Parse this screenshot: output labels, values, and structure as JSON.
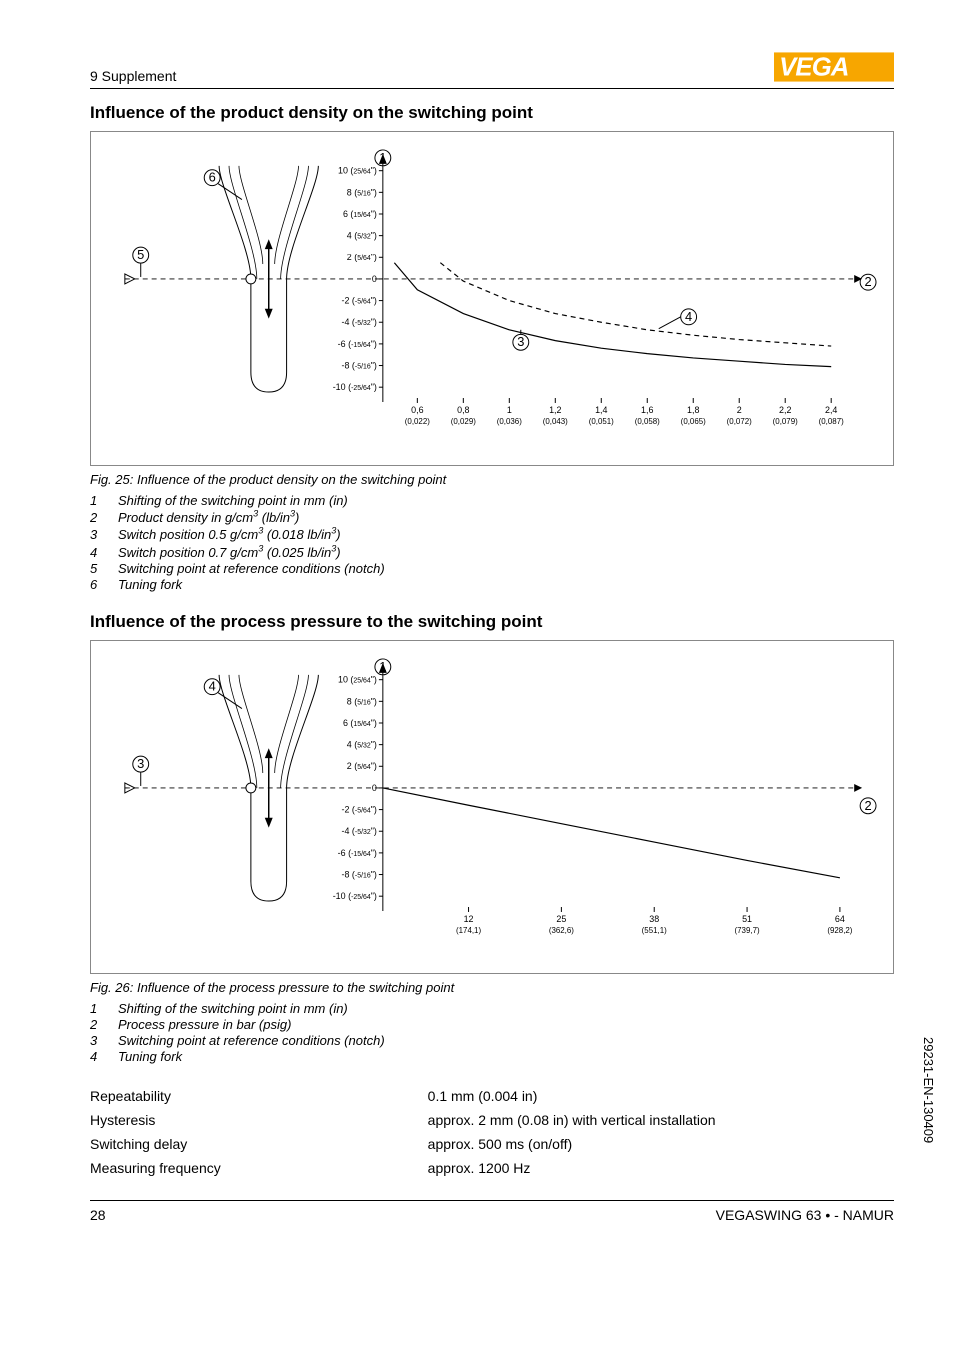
{
  "header": {
    "supplement": "9 Supplement"
  },
  "logo_colors": {
    "bg": "#f7a600",
    "fg": "#ffffff"
  },
  "section1": {
    "heading": "Influence of the product density on the switching point",
    "caption": "Fig. 25: Influence of the product density on the switching point",
    "legend": [
      "Shifting of the switching point in mm (in)",
      "Product density in g/cm³ (lb/in³)",
      "Switch position 0.5 g/cm³ (0.018 lb/in³)",
      "Switch position 0.7 g/cm³ (0.025 lb/in³)",
      "Switching point at reference conditions (notch)",
      "Tuning fork"
    ]
  },
  "section2": {
    "heading": "Influence of the process pressure to the switching point",
    "caption": "Fig. 26: Influence of the process pressure to the switching point",
    "legend": [
      "Shifting of the switching point in mm (in)",
      "Process pressure in bar (psig)",
      "Switching point at reference conditions (notch)",
      "Tuning fork"
    ]
  },
  "chart_common": {
    "y_values": [
      10,
      8,
      6,
      4,
      2,
      0,
      -2,
      -4,
      -6,
      -8,
      -10
    ],
    "y_fractions": [
      "25/64",
      "5/16",
      "15/64",
      "5/32",
      "5/64",
      "",
      "-5/64",
      "-5/32",
      "-15/64",
      "-5/16",
      "-25/64"
    ],
    "line_color": "#000000",
    "grid_color": "#000000",
    "background": "#ffffff"
  },
  "chart1": {
    "x_labels_top": [
      "0,6",
      "0,8",
      "1",
      "1,2",
      "1,4",
      "1,6",
      "1,8",
      "2",
      "2,2",
      "2,4"
    ],
    "x_labels_bot": [
      "(0,022)",
      "(0,029)",
      "(0,036)",
      "(0,043)",
      "(0,051)",
      "(0,058)",
      "(0,065)",
      "(0,072)",
      "(0,079)",
      "(0,087)"
    ],
    "curve3": [
      [
        0.5,
        1.5
      ],
      [
        0.6,
        -1
      ],
      [
        0.8,
        -3.2
      ],
      [
        1.0,
        -4.7
      ],
      [
        1.2,
        -5.7
      ],
      [
        1.4,
        -6.4
      ],
      [
        1.6,
        -6.9
      ],
      [
        1.8,
        -7.3
      ],
      [
        2.0,
        -7.6
      ],
      [
        2.2,
        -7.9
      ],
      [
        2.4,
        -8.1
      ]
    ],
    "curve4": [
      [
        0.7,
        1.5
      ],
      [
        0.8,
        -0.2
      ],
      [
        1.0,
        -2.0
      ],
      [
        1.2,
        -3.2
      ],
      [
        1.4,
        -4.0
      ],
      [
        1.6,
        -4.7
      ],
      [
        1.8,
        -5.2
      ],
      [
        2.0,
        -5.6
      ],
      [
        2.2,
        -5.9
      ],
      [
        2.4,
        -6.2
      ]
    ],
    "markers": {
      "1": [
        0,
        10.8
      ],
      "2": [
        2.5,
        -0.2
      ],
      "3": [
        1.05,
        -4.2
      ],
      "4": [
        1.76,
        -3.3
      ],
      "5": [
        -0.9,
        0
      ],
      "6": [
        -0.65,
        9.5
      ]
    }
  },
  "chart2": {
    "x_labels_top": [
      "12",
      "25",
      "38",
      "51",
      "64"
    ],
    "x_labels_bot": [
      "(174,1)",
      "(362,6)",
      "(551,1)",
      "(739,7)",
      "(928,2)"
    ],
    "curve": [
      [
        0,
        0
      ],
      [
        12,
        -1.6
      ],
      [
        25,
        -3.3
      ],
      [
        38,
        -5.0
      ],
      [
        51,
        -6.7
      ],
      [
        64,
        -8.3
      ]
    ],
    "markers": {
      "1": [
        0,
        10.8
      ],
      "2": [
        66,
        0
      ],
      "3": [
        -18,
        0
      ],
      "4": [
        -13,
        9.5
      ]
    }
  },
  "specs": [
    [
      "Repeatability",
      "0.1 mm (0.004 in)"
    ],
    [
      "Hysteresis",
      "approx. 2 mm (0.08 in) with vertical installation"
    ],
    [
      "Switching delay",
      "approx. 500 ms (on/off)"
    ],
    [
      "Measuring frequency",
      "approx. 1200 Hz"
    ]
  ],
  "footer": {
    "page": "28",
    "product": "VEGASWING 63 • - NAMUR"
  },
  "doc_code": "29231-EN-130409"
}
